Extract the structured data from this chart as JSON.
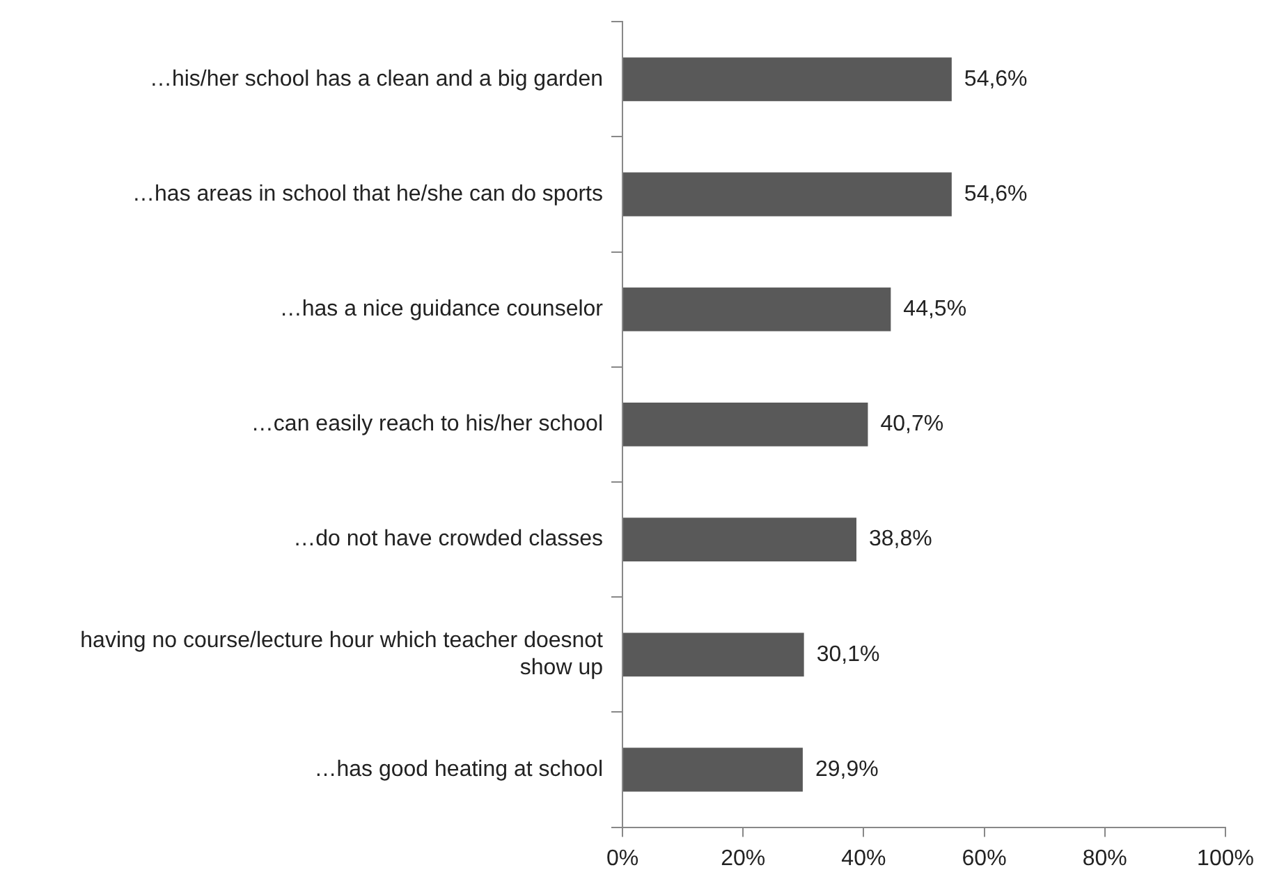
{
  "chart_data": {
    "type": "bar",
    "orientation": "horizontal",
    "categories": [
      "…his/her school has a clean and a big garden",
      "…has areas in school that he/she can do sports",
      "…has a nice guidance counselor",
      "…can easily reach to his/her school",
      "…do not have crowded classes",
      "having no course/lecture hour which teacher doesnot show up",
      "…has good heating at school"
    ],
    "values": [
      54.6,
      54.6,
      44.5,
      40.7,
      38.8,
      30.1,
      29.9
    ],
    "value_labels": [
      "54,6%",
      "54,6%",
      "44,5%",
      "40,7%",
      "38,8%",
      "30,1%",
      "29,9%"
    ],
    "color": "#595959",
    "xlim": [
      0,
      100
    ],
    "xticks": [
      {
        "value": 0,
        "label": "0%"
      },
      {
        "value": 20,
        "label": "20%"
      },
      {
        "value": 40,
        "label": "40%"
      },
      {
        "value": 60,
        "label": "60%"
      },
      {
        "value": 80,
        "label": "80%"
      },
      {
        "value": 100,
        "label": "100%"
      }
    ],
    "grid": false,
    "legend": false
  }
}
